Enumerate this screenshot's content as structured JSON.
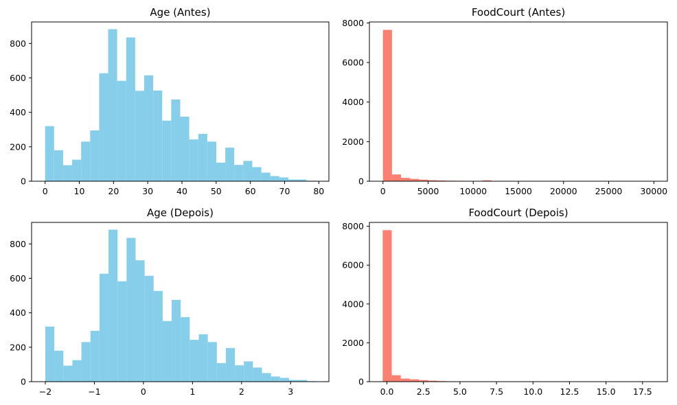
{
  "chart_data": [
    {
      "type": "bar",
      "title": "Age (Antes)",
      "color": "#87CEEB",
      "xlim": [
        -3.95,
        82.95
      ],
      "ylim": [
        0,
        925
      ],
      "xticks": [
        0,
        10,
        20,
        30,
        40,
        50,
        60,
        70,
        80
      ],
      "xtick_labels": [
        "0",
        "10",
        "20",
        "30",
        "40",
        "50",
        "60",
        "70",
        "80"
      ],
      "yticks": [
        0,
        200,
        400,
        600,
        800
      ],
      "ytick_labels": [
        "0",
        "200",
        "400",
        "600",
        "800"
      ],
      "bin_start": 0,
      "bin_width": 2.6333,
      "values": [
        320,
        180,
        93,
        125,
        230,
        295,
        627,
        883,
        583,
        835,
        525,
        615,
        527,
        352,
        475,
        375,
        243,
        275,
        230,
        108,
        195,
        95,
        118,
        82,
        50,
        30,
        22,
        10,
        10,
        3
      ]
    },
    {
      "type": "bar",
      "title": "FoodCourt (Antes)",
      "color": "#FA8072",
      "xlim": [
        -1500,
        31500
      ],
      "ylim": [
        0,
        8050
      ],
      "xticks": [
        0,
        5000,
        10000,
        15000,
        20000,
        25000,
        30000
      ],
      "xtick_labels": [
        "0",
        "5000",
        "10000",
        "15000",
        "20000",
        "25000",
        "30000"
      ],
      "yticks": [
        0,
        2000,
        4000,
        6000,
        8000
      ],
      "ytick_labels": [
        "0",
        "2000",
        "4000",
        "6000",
        "8000"
      ],
      "bin_start": 0,
      "bin_width": 1000,
      "values": [
        7650,
        340,
        170,
        120,
        80,
        50,
        35,
        25,
        20,
        15,
        12,
        45,
        8,
        6,
        5,
        4,
        3,
        3,
        2,
        2,
        2,
        1,
        1,
        1,
        1,
        1,
        1,
        1,
        1,
        1
      ]
    },
    {
      "type": "bar",
      "title": "Age (Depois)",
      "color": "#87CEEB",
      "xlim": [
        -2.28,
        3.78
      ],
      "ylim": [
        0,
        925
      ],
      "xticks": [
        -2,
        -1,
        0,
        1,
        2,
        3
      ],
      "xtick_labels": [
        "−2",
        "−1",
        "0",
        "1",
        "2",
        "3"
      ],
      "yticks": [
        0,
        200,
        400,
        600,
        800
      ],
      "ytick_labels": [
        "0",
        "200",
        "400",
        "600",
        "800"
      ],
      "bin_start": -2.0,
      "bin_width": 0.184,
      "values": [
        320,
        180,
        93,
        125,
        230,
        295,
        627,
        883,
        583,
        835,
        705,
        615,
        527,
        352,
        475,
        375,
        243,
        275,
        230,
        108,
        195,
        95,
        118,
        82,
        50,
        30,
        22,
        10,
        10,
        3
      ]
    },
    {
      "type": "bar",
      "title": "FoodCourt (Depois)",
      "color": "#FA8072",
      "xlim": [
        -1.2,
        19.2
      ],
      "ylim": [
        0,
        8200
      ],
      "xticks": [
        0,
        2.5,
        5,
        7.5,
        10,
        12.5,
        15,
        17.5
      ],
      "xtick_labels": [
        "0.0",
        "2.5",
        "5.0",
        "7.5",
        "10.0",
        "12.5",
        "15.0",
        "17.5"
      ],
      "yticks": [
        0,
        2000,
        4000,
        6000,
        8000
      ],
      "ytick_labels": [
        "0",
        "2000",
        "4000",
        "6000",
        "8000"
      ],
      "bin_start": -0.29,
      "bin_width": 0.62,
      "values": [
        7800,
        330,
        160,
        120,
        80,
        50,
        30,
        20,
        15,
        10,
        8,
        6,
        5,
        4,
        3,
        3,
        2,
        2,
        2,
        1,
        1,
        1,
        1,
        1,
        1,
        1,
        1,
        1,
        1,
        1
      ]
    }
  ]
}
